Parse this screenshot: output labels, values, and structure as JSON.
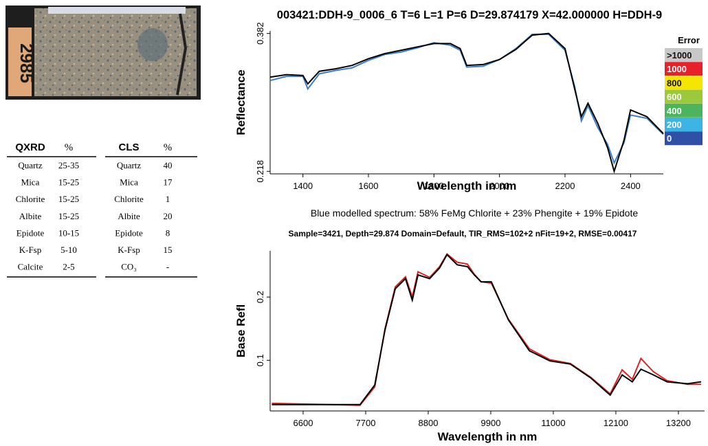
{
  "photo": {
    "label": "2985"
  },
  "tables": [
    {
      "headers": [
        "QXRD",
        "%"
      ],
      "rows": [
        [
          "Quartz",
          "25-35"
        ],
        [
          "Mica",
          "15-25"
        ],
        [
          "Chlorite",
          "15-25"
        ],
        [
          "Albite",
          "15-25"
        ],
        [
          "Epidote",
          "10-15"
        ],
        [
          "K-Fsp",
          "5-10"
        ],
        [
          "Calcite",
          "2-5"
        ]
      ]
    },
    {
      "headers": [
        "CLS",
        "%"
      ],
      "rows": [
        [
          "Quartz",
          "40"
        ],
        [
          "Mica",
          "17"
        ],
        [
          "Chlorite",
          "1"
        ],
        [
          "Albite",
          "20"
        ],
        [
          "Epidote",
          "8"
        ],
        [
          "K-Fsp",
          "15"
        ],
        [
          "CO₃",
          "-"
        ]
      ]
    }
  ],
  "error_legend": {
    "title": "Error",
    "items": [
      {
        "label": ">1000",
        "color": "#c8c8c8"
      },
      {
        "label": "1000",
        "color": "#e8202a"
      },
      {
        "label": "800",
        "color": "#f4e600"
      },
      {
        "label": "600",
        "color": "#9cc83c"
      },
      {
        "label": "400",
        "color": "#4cb45c"
      },
      {
        "label": "200",
        "color": "#3cb4e4"
      },
      {
        "label": "0",
        "color": "#3050a8"
      }
    ]
  },
  "chart_data": [
    {
      "type": "line",
      "title": "003421:DDH-9_0006_6  T=6 L=1 P=6 D=29.874179 X=42.000000 H=DDH-9",
      "x_label": "Wavelength in nm",
      "y_label": "Reflectance",
      "note": "Blue modelled spectrum:   58%  FeMg Chlorite  + 23% Phengite  +  19%  Epidote",
      "x": [
        1300,
        1350,
        1400,
        1415,
        1450,
        1500,
        1550,
        1600,
        1650,
        1700,
        1750,
        1800,
        1850,
        1880,
        1900,
        1950,
        2000,
        2050,
        2100,
        2150,
        2200,
        2230,
        2250,
        2270,
        2300,
        2330,
        2350,
        2380,
        2400,
        2450,
        2500
      ],
      "series": [
        {
          "color": "#3a7cc8",
          "values": [
            0.326,
            0.331,
            0.331,
            0.316,
            0.334,
            0.338,
            0.341,
            0.35,
            0.357,
            0.36,
            0.365,
            0.371,
            0.368,
            0.362,
            0.342,
            0.343,
            0.351,
            0.364,
            0.381,
            0.381,
            0.362,
            0.318,
            0.278,
            0.296,
            0.27,
            0.25,
            0.228,
            0.252,
            0.285,
            0.281,
            0.262
          ]
        },
        {
          "color": "#000000",
          "values": [
            0.33,
            0.333,
            0.332,
            0.322,
            0.337,
            0.34,
            0.344,
            0.352,
            0.358,
            0.362,
            0.366,
            0.37,
            0.37,
            0.364,
            0.344,
            0.345,
            0.351,
            0.363,
            0.38,
            0.382,
            0.364,
            0.315,
            0.283,
            0.299,
            0.275,
            0.246,
            0.218,
            0.255,
            0.291,
            0.283,
            0.263
          ]
        }
      ],
      "xlim": [
        1300,
        2500
      ],
      "xticks": [
        1400,
        1600,
        1800,
        2000,
        2200,
        2400
      ],
      "ylim": [
        0.215,
        0.385
      ],
      "yticks": [
        0.218,
        0.382
      ]
    },
    {
      "type": "line",
      "title": "Sample=3421, Depth=29.874     Domain=Default, TIR_RMS=102+2     nFit=19+2, RMSE=0.00417",
      "x_label": "Wavelength in nm",
      "y_label": "Base Refl",
      "x": [
        6050,
        7600,
        7860,
        8040,
        8220,
        8400,
        8520,
        8620,
        8825,
        9000,
        9130,
        9310,
        9490,
        9610,
        9730,
        9910,
        10210,
        10580,
        10940,
        11300,
        11660,
        12000,
        12210,
        12390,
        12540,
        12760,
        13000,
        13360,
        13600
      ],
      "series": [
        {
          "color": "#e02020",
          "values": [
            0.032,
            0.029,
            0.058,
            0.15,
            0.216,
            0.232,
            0.2,
            0.24,
            0.231,
            0.248,
            0.268,
            0.255,
            0.252,
            0.236,
            0.224,
            0.222,
            0.165,
            0.118,
            0.101,
            0.095,
            0.073,
            0.047,
            0.085,
            0.07,
            0.103,
            0.082,
            0.068,
            0.062,
            0.062
          ]
        },
        {
          "color": "#000000",
          "values": [
            0.03,
            0.03,
            0.061,
            0.148,
            0.213,
            0.229,
            0.195,
            0.235,
            0.229,
            0.246,
            0.267,
            0.251,
            0.248,
            0.235,
            0.224,
            0.224,
            0.164,
            0.115,
            0.099,
            0.094,
            0.072,
            0.045,
            0.077,
            0.066,
            0.086,
            0.077,
            0.066,
            0.063,
            0.066
          ]
        }
      ],
      "xlim": [
        6020,
        13660
      ],
      "xticks": [
        6600,
        7700,
        8800,
        9900,
        11000,
        12100,
        13200
      ],
      "ylim": [
        0.02,
        0.273
      ],
      "yticks": [
        0.1,
        0.2
      ]
    }
  ]
}
